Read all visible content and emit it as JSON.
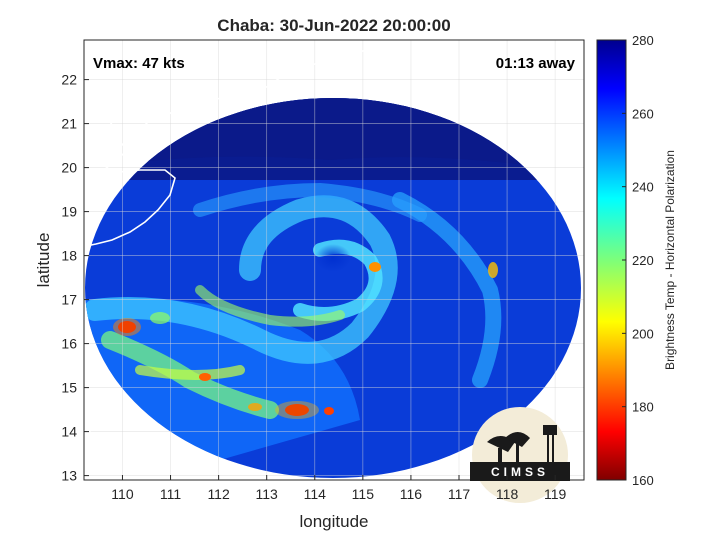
{
  "title": "Chaba: 30-Jun-2022 20:00:00",
  "vmax_label": "Vmax: 47 kts",
  "time_away_label": "01:13 away",
  "map": {
    "xlabel": "longitude",
    "ylabel": "latitude",
    "xlim": [
      109.2,
      119.6
    ],
    "ylim": [
      12.9,
      22.9
    ],
    "xticks": [
      110,
      111,
      112,
      113,
      114,
      115,
      116,
      117,
      118,
      119
    ],
    "yticks": [
      13,
      14,
      15,
      16,
      17,
      18,
      19,
      20,
      21,
      22
    ],
    "grid": true,
    "storm_center": [
      114.4,
      18.0
    ],
    "swath_radius_deg": 5.4
  },
  "colorbar": {
    "label": "Brightness Temp - Horizontal Polarization",
    "min": 160,
    "max": 280,
    "ticks": [
      160,
      180,
      200,
      220,
      240,
      260,
      280
    ],
    "colormap": "jet"
  },
  "logo": {
    "text": "CIMSS"
  },
  "colors": {
    "background": "#ffffff",
    "axes_frame": "#262626",
    "grid": "#d9d9d9",
    "coastline": "#ffffff"
  }
}
